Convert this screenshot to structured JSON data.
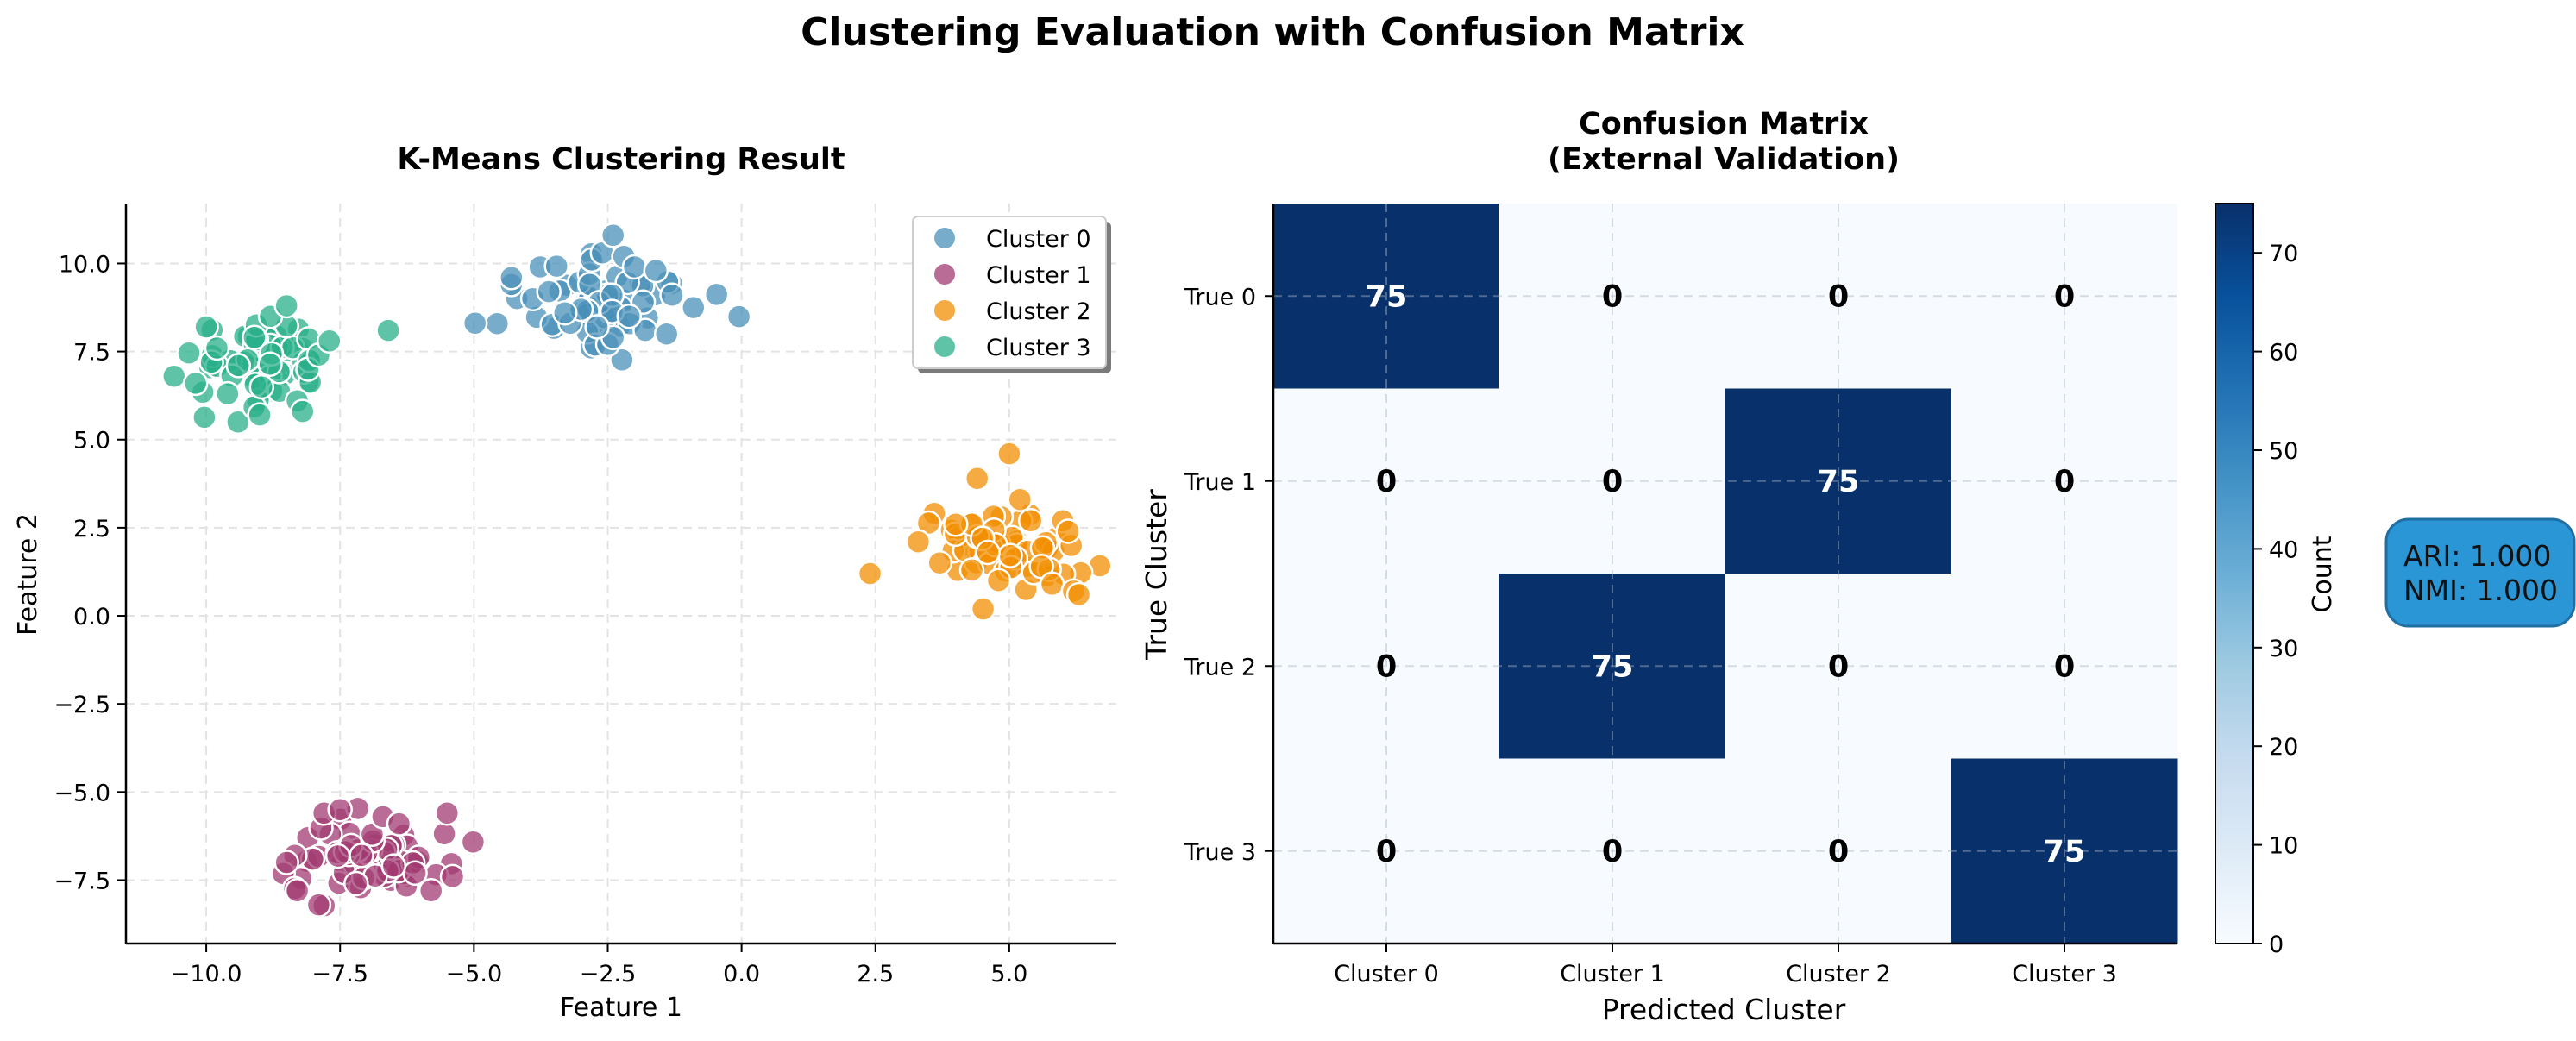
{
  "figure": {
    "title": "Clustering Evaluation with Confusion Matrix"
  },
  "chart_data": [
    {
      "type": "scatter",
      "title": "K-Means Clustering Result",
      "xlabel": "Feature 1",
      "ylabel": "Feature 2",
      "xlim": [
        -11.5,
        7.0
      ],
      "ylim": [
        -9.3,
        11.7
      ],
      "xticks": [
        -10.0,
        -7.5,
        -5.0,
        -2.5,
        0.0,
        2.5,
        5.0
      ],
      "yticks": [
        -7.5,
        -5.0,
        -2.5,
        0.0,
        2.5,
        5.0,
        7.5,
        10.0
      ],
      "xtick_labels": [
        "−10.0",
        "−7.5",
        "−5.0",
        "−2.5",
        "0.0",
        "2.5",
        "5.0"
      ],
      "ytick_labels": [
        "−7.5",
        "−5.0",
        "−2.5",
        "0.0",
        "2.5",
        "5.0",
        "7.5",
        "10.0"
      ],
      "grid": true,
      "legend_position": "top-right",
      "series": [
        {
          "name": "Cluster 0",
          "color": "#4a90b8",
          "center": [
            -2.6,
            8.9
          ],
          "spread": [
            0.9,
            0.65
          ],
          "n": 75,
          "x": [
            -4.3,
            -3.9,
            -3.6,
            -3.2,
            -3.0,
            -2.8,
            -2.6,
            -2.4,
            -2.2,
            -2.0,
            -1.8,
            -1.6,
            -1.4,
            -1.3,
            -2.5,
            -2.4,
            -2.7,
            -3.3,
            -2.1
          ],
          "y": [
            9.6,
            9.0,
            9.2,
            8.3,
            8.7,
            10.1,
            10.3,
            10.8,
            10.2,
            9.9,
            8.1,
            9.8,
            8.0,
            9.1,
            7.7,
            7.9,
            8.2,
            8.6,
            8.5
          ]
        },
        {
          "name": "Cluster 1",
          "color": "#a23b72",
          "center": [
            -6.9,
            -6.7
          ],
          "spread": [
            0.75,
            0.55
          ],
          "n": 75,
          "x": [
            -8.5,
            -8.3,
            -7.9,
            -7.8,
            -7.5,
            -7.2,
            -6.9,
            -6.7,
            -6.4,
            -6.1,
            -5.8,
            -5.5,
            -5.4,
            -7.1,
            -6.5
          ],
          "y": [
            -7.0,
            -7.8,
            -8.2,
            -5.6,
            -5.5,
            -7.6,
            -6.2,
            -5.7,
            -5.9,
            -7.3,
            -7.8,
            -5.6,
            -7.4,
            -6.8,
            -7.1
          ]
        },
        {
          "name": "Cluster 2",
          "color": "#f18f01",
          "center": [
            4.9,
            1.9
          ],
          "spread": [
            0.65,
            0.55
          ],
          "n": 75,
          "x": [
            2.4,
            3.3,
            3.7,
            4.0,
            4.4,
            4.5,
            4.8,
            5.0,
            5.2,
            5.4,
            5.6,
            5.8,
            6.0,
            6.1,
            6.2,
            6.3,
            4.6,
            4.3
          ],
          "y": [
            1.2,
            2.1,
            1.5,
            2.6,
            3.9,
            2.2,
            1.0,
            4.6,
            3.3,
            2.7,
            1.4,
            0.9,
            2.7,
            2.4,
            0.7,
            0.6,
            1.8,
            1.3
          ]
        },
        {
          "name": "Cluster 3",
          "color": "#2ab08a",
          "center": [
            -8.9,
            7.2
          ],
          "spread": [
            0.6,
            0.55
          ],
          "n": 75,
          "x": [
            -10.6,
            -10.2,
            -10.0,
            -9.8,
            -9.6,
            -9.4,
            -9.0,
            -8.8,
            -8.5,
            -8.3,
            -8.1,
            -7.9,
            -7.7,
            -6.6,
            -8.2,
            -9.1
          ],
          "y": [
            6.8,
            6.6,
            8.2,
            7.6,
            6.3,
            7.1,
            5.7,
            8.5,
            8.8,
            6.1,
            7.0,
            7.4,
            7.8,
            8.1,
            5.8,
            7.9
          ]
        }
      ]
    },
    {
      "type": "heatmap",
      "title_lines": [
        "Confusion Matrix",
        "(External Validation)"
      ],
      "xlabel": "Predicted Cluster",
      "ylabel": "True Cluster",
      "x_categories": [
        "Cluster 0",
        "Cluster 1",
        "Cluster 2",
        "Cluster 3"
      ],
      "y_categories": [
        "True 0",
        "True 1",
        "True 2",
        "True 3"
      ],
      "values": [
        [
          75,
          0,
          0,
          0
        ],
        [
          0,
          0,
          75,
          0
        ],
        [
          0,
          75,
          0,
          0
        ],
        [
          0,
          0,
          0,
          75
        ]
      ],
      "colorbar": {
        "label": "Count",
        "min": 0,
        "max": 75,
        "ticks": [
          0,
          10,
          20,
          30,
          40,
          50,
          60,
          70
        ],
        "low_color": "#f7fbff",
        "high_color": "#08306b"
      }
    }
  ],
  "metrics_box": {
    "lines": [
      "ARI: 1.000",
      "NMI: 1.000"
    ],
    "bg": "#2b96d6",
    "border": "#1f6fa3"
  }
}
